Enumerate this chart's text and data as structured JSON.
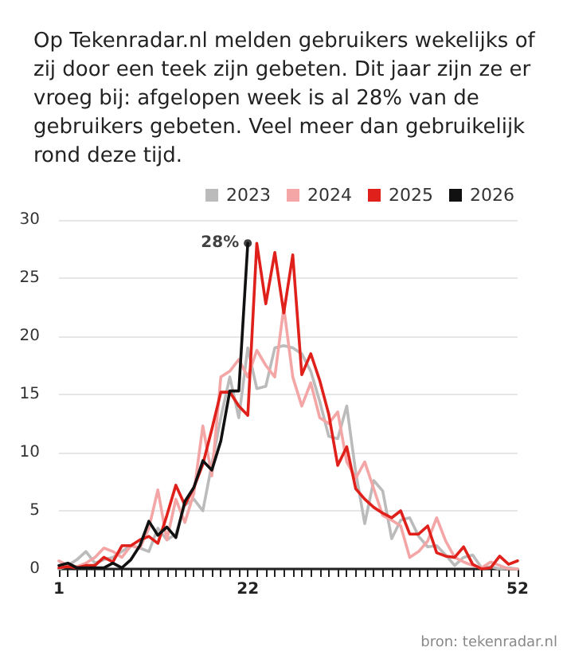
{
  "chart_data": {
    "type": "line",
    "title": "Op Tekenradar.nl melden gebruikers wekelijks of zij door een teek zijn gebeten. Dit jaar zijn ze er vroeg bij: afgelopen week is al 28% van de gebruikers gebeten. Veel meer dan gebruikelijk rond deze tijd.",
    "x": [
      1,
      2,
      3,
      4,
      5,
      6,
      7,
      8,
      9,
      10,
      11,
      12,
      13,
      14,
      15,
      16,
      17,
      18,
      19,
      20,
      21,
      22,
      23,
      24,
      25,
      26,
      27,
      28,
      29,
      30,
      31,
      32,
      33,
      34,
      35,
      36,
      37,
      38,
      39,
      40,
      41,
      42,
      43,
      44,
      45,
      46,
      47,
      48,
      49,
      50,
      51,
      52
    ],
    "series": [
      {
        "name": "2023",
        "color": "#bbbbbb",
        "values": [
          0,
          0.3,
          0.8,
          1.5,
          0.5,
          0.8,
          1,
          1.5,
          2,
          1.8,
          1.5,
          3.5,
          2.5,
          3,
          5.5,
          6,
          5,
          9,
          13,
          16.5,
          13,
          19,
          15.5,
          15.7,
          19,
          19.2,
          19,
          18.5,
          17,
          14.4,
          11.4,
          11.2,
          14,
          8.3,
          3.9,
          7.6,
          6.7,
          2.6,
          4.2,
          4.4,
          2.8,
          1.9,
          2,
          1.2,
          0.3,
          1,
          1.2,
          0.1,
          0.2,
          0,
          0.1,
          0
        ]
      },
      {
        "name": "2024",
        "color": "#f4a6a6",
        "values": [
          0.7,
          0.3,
          0.2,
          0.5,
          1,
          1.8,
          1.5,
          1,
          2,
          1.8,
          3.5,
          6.8,
          2.5,
          6,
          4,
          6.5,
          12.3,
          8,
          16.5,
          17,
          18,
          16.5,
          18.8,
          17.5,
          16.5,
          22.5,
          16.5,
          14,
          16,
          13,
          12.5,
          13.5,
          9.2,
          7.8,
          9.2,
          6.9,
          4.6,
          4.2,
          3.7,
          1,
          1.5,
          2.4,
          4.4,
          2.4,
          1,
          0.6,
          0.3,
          0.1,
          0.6,
          0.3,
          0,
          0
        ]
      },
      {
        "name": "2025",
        "color": "#e0201b",
        "values": [
          0.1,
          0.2,
          0.1,
          0.3,
          0.3,
          1,
          0.6,
          2,
          2,
          2.5,
          2.8,
          2.2,
          4.6,
          7.2,
          5.5,
          7,
          9,
          12,
          15.2,
          15.2,
          14,
          13.2,
          28,
          22.8,
          27.2,
          22,
          27,
          16.7,
          18.5,
          16.2,
          13.3,
          8.9,
          10.5,
          6.9,
          6,
          5.3,
          4.8,
          4.4,
          5,
          3,
          3,
          3.7,
          1.4,
          1.1,
          1,
          1.9,
          0.4,
          0,
          0.1,
          1.1,
          0.4,
          0.7
        ]
      },
      {
        "name": "2026",
        "color": "#111111",
        "x": [
          1,
          2,
          3,
          4,
          5,
          6,
          7,
          8,
          9,
          10,
          11,
          12,
          13,
          14,
          15,
          16,
          17,
          18,
          19,
          20,
          21,
          22
        ],
        "values": [
          0.3,
          0.5,
          0.1,
          0.1,
          0.1,
          0.1,
          0.5,
          0.1,
          0.8,
          2,
          4.1,
          2.9,
          3.6,
          2.7,
          5.8,
          7,
          9.3,
          8.5,
          11,
          15.3,
          15.3,
          28
        ]
      }
    ],
    "xlim": [
      1,
      52
    ],
    "xticks": [
      1,
      {
        "value": 2,
        "label": null
      },
      {
        "value": 3,
        "label": null
      },
      {
        "value": 4,
        "label": null
      },
      {
        "value": 5,
        "label": null
      },
      {
        "value": 6,
        "label": null
      },
      {
        "value": 7,
        "label": null
      },
      {
        "value": 8,
        "label": null
      },
      {
        "value": 9,
        "label": null
      },
      {
        "value": 10,
        "label": null
      },
      {
        "value": 11,
        "label": null
      },
      {
        "value": 12,
        "label": null
      },
      {
        "value": 13,
        "label": null
      },
      {
        "value": 14,
        "label": null
      },
      {
        "value": 15,
        "label": null
      },
      {
        "value": 16,
        "label": null
      },
      {
        "value": 17,
        "label": null
      },
      {
        "value": 18,
        "label": null
      },
      {
        "value": 19,
        "label": null
      },
      {
        "value": 20,
        "label": null
      },
      {
        "value": 21,
        "label": null
      },
      22,
      {
        "value": 23,
        "label": null
      },
      {
        "value": 24,
        "label": null
      },
      {
        "value": 25,
        "label": null
      },
      {
        "value": 26,
        "label": null
      },
      {
        "value": 27,
        "label": null
      },
      {
        "value": 28,
        "label": null
      },
      {
        "value": 29,
        "label": null
      },
      {
        "value": 30,
        "label": null
      },
      {
        "value": 31,
        "label": null
      },
      {
        "value": 32,
        "label": null
      },
      {
        "value": 33,
        "label": null
      },
      {
        "value": 34,
        "label": null
      },
      {
        "value": 35,
        "label": null
      },
      {
        "value": 36,
        "label": null
      },
      {
        "value": 37,
        "label": null
      },
      {
        "value": 38,
        "label": null
      },
      {
        "value": 39,
        "label": null
      },
      {
        "value": 40,
        "label": null
      },
      {
        "value": 41,
        "label": null
      },
      {
        "value": 42,
        "label": null
      },
      {
        "value": 43,
        "label": null
      },
      {
        "value": 44,
        "label": null
      },
      {
        "value": 45,
        "label": null
      },
      {
        "value": 46,
        "label": null
      },
      {
        "value": 47,
        "label": null
      },
      {
        "value": 48,
        "label": null
      },
      {
        "value": 49,
        "label": null
      },
      {
        "value": 50,
        "label": null
      },
      {
        "value": 51,
        "label": null
      },
      52
    ],
    "ylim": [
      0,
      30
    ],
    "yticks": [
      0,
      5,
      10,
      15,
      20,
      25,
      30
    ],
    "grid": "y",
    "legend": "top right",
    "marker": "none",
    "line_style": "solid",
    "annotations": [
      {
        "text": "28%",
        "x": 22,
        "y": 28
      },
      "bron: tekenradar.nl"
    ]
  }
}
